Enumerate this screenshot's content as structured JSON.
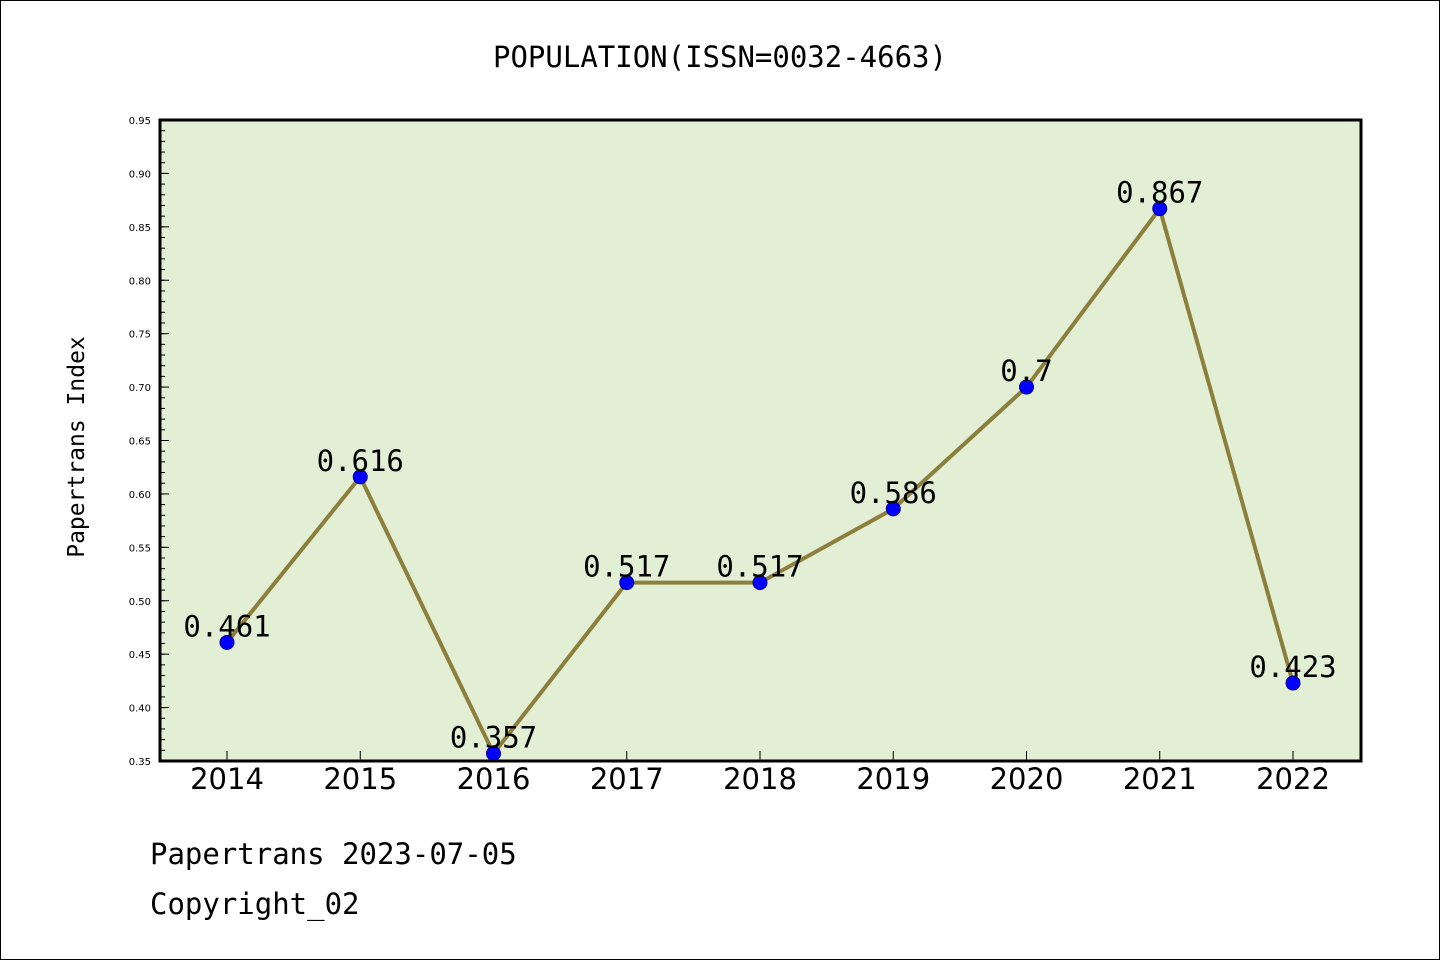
{
  "chart_data": {
    "type": "line",
    "title": "POPULATION(ISSN=0032-4663)",
    "xlabel": "",
    "ylabel": "Papertrans Index",
    "categories": [
      "2014",
      "2015",
      "2016",
      "2017",
      "2018",
      "2019",
      "2020",
      "2021",
      "2022"
    ],
    "values": [
      0.461,
      0.616,
      0.357,
      0.517,
      0.517,
      0.586,
      0.7,
      0.867,
      0.423
    ],
    "data_labels": [
      "0.461",
      "0.616",
      "0.357",
      "0.517",
      "0.517",
      "0.586",
      "0.7",
      "0.867",
      "0.423"
    ],
    "ylim": [
      0.35,
      0.95
    ],
    "yticks": [
      "0.35",
      "0.40",
      "0.45",
      "0.50",
      "0.55",
      "0.60",
      "0.65",
      "0.70",
      "0.75",
      "0.80",
      "0.85",
      "0.90",
      "0.95"
    ],
    "grid": false,
    "colors": {
      "plot_background": "#e2efd4",
      "line": "#8c7f3c",
      "marker": "#0000ff"
    }
  },
  "footer": {
    "source": "Papertrans 2023-07-05",
    "copyright": "Copyright_02"
  }
}
